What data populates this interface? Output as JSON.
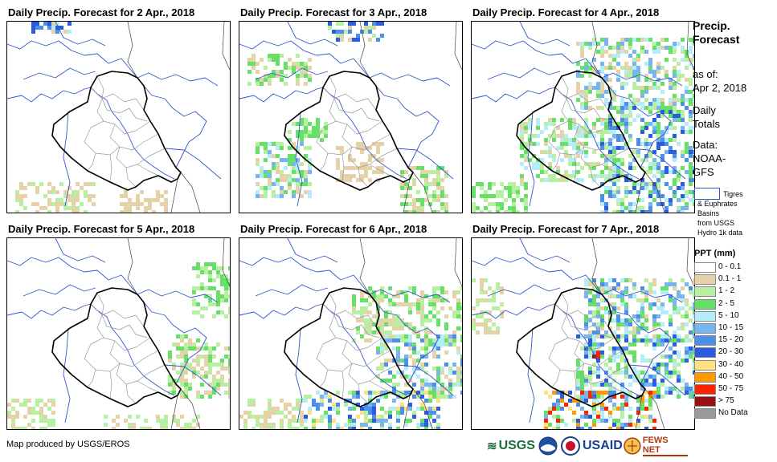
{
  "panels": [
    {
      "title": "Daily Precip. Forecast for 2 Apr., 2018",
      "day": 2
    },
    {
      "title": "Daily Precip. Forecast for 3 Apr., 2018",
      "day": 3
    },
    {
      "title": "Daily Precip. Forecast for 4 Apr., 2018",
      "day": 4
    },
    {
      "title": "Daily Precip. Forecast for 5 Apr., 2018",
      "day": 5
    },
    {
      "title": "Daily Precip. Forecast for 6 Apr., 2018",
      "day": 6
    },
    {
      "title": "Daily Precip. Forecast for 7 Apr., 2018",
      "day": 7
    }
  ],
  "legend": {
    "title_line1": "Precip.",
    "title_line2": "Forecast",
    "asof_line1": "as of:",
    "asof_line2": "Apr 2, 2018",
    "totals_line1": "Daily",
    "totals_line2": "Totals",
    "data_line1": "Data:",
    "data_line2": "NOAA-",
    "data_line3": "GFS",
    "basin_line1": "Tigres",
    "basin_line2": "& Euphrates",
    "basin_line3": "Basins",
    "basin_line4": "from USGS",
    "basin_line5": "Hydro 1k data",
    "ppt_title": "PPT (mm)",
    "ppt_items": [
      {
        "label": "0 - 0.1",
        "color": "#ffffff"
      },
      {
        "label": "0.1 - 1",
        "color": "#e6d2a8"
      },
      {
        "label": "1 - 2",
        "color": "#b6f0a0"
      },
      {
        "label": "2 - 5",
        "color": "#66e066"
      },
      {
        "label": "5 - 10",
        "color": "#b4ecf8"
      },
      {
        "label": "10 - 15",
        "color": "#78b4f0"
      },
      {
        "label": "15 - 20",
        "color": "#4a90e8"
      },
      {
        "label": "20 - 30",
        "color": "#2a5ce0"
      },
      {
        "label": "30 - 40",
        "color": "#ffe080"
      },
      {
        "label": "40 - 50",
        "color": "#ff9900"
      },
      {
        "label": "50 - 75",
        "color": "#ff2200"
      },
      {
        "label": "> 75",
        "color": "#9a1010"
      },
      {
        "label": "No Data",
        "color": "#999999"
      }
    ]
  },
  "footer": {
    "credit": "Map produced by USGS/EROS",
    "logo_usgs": "USGS",
    "logo_usaid": "USAID",
    "logo_fews": "FEWS NET"
  }
}
